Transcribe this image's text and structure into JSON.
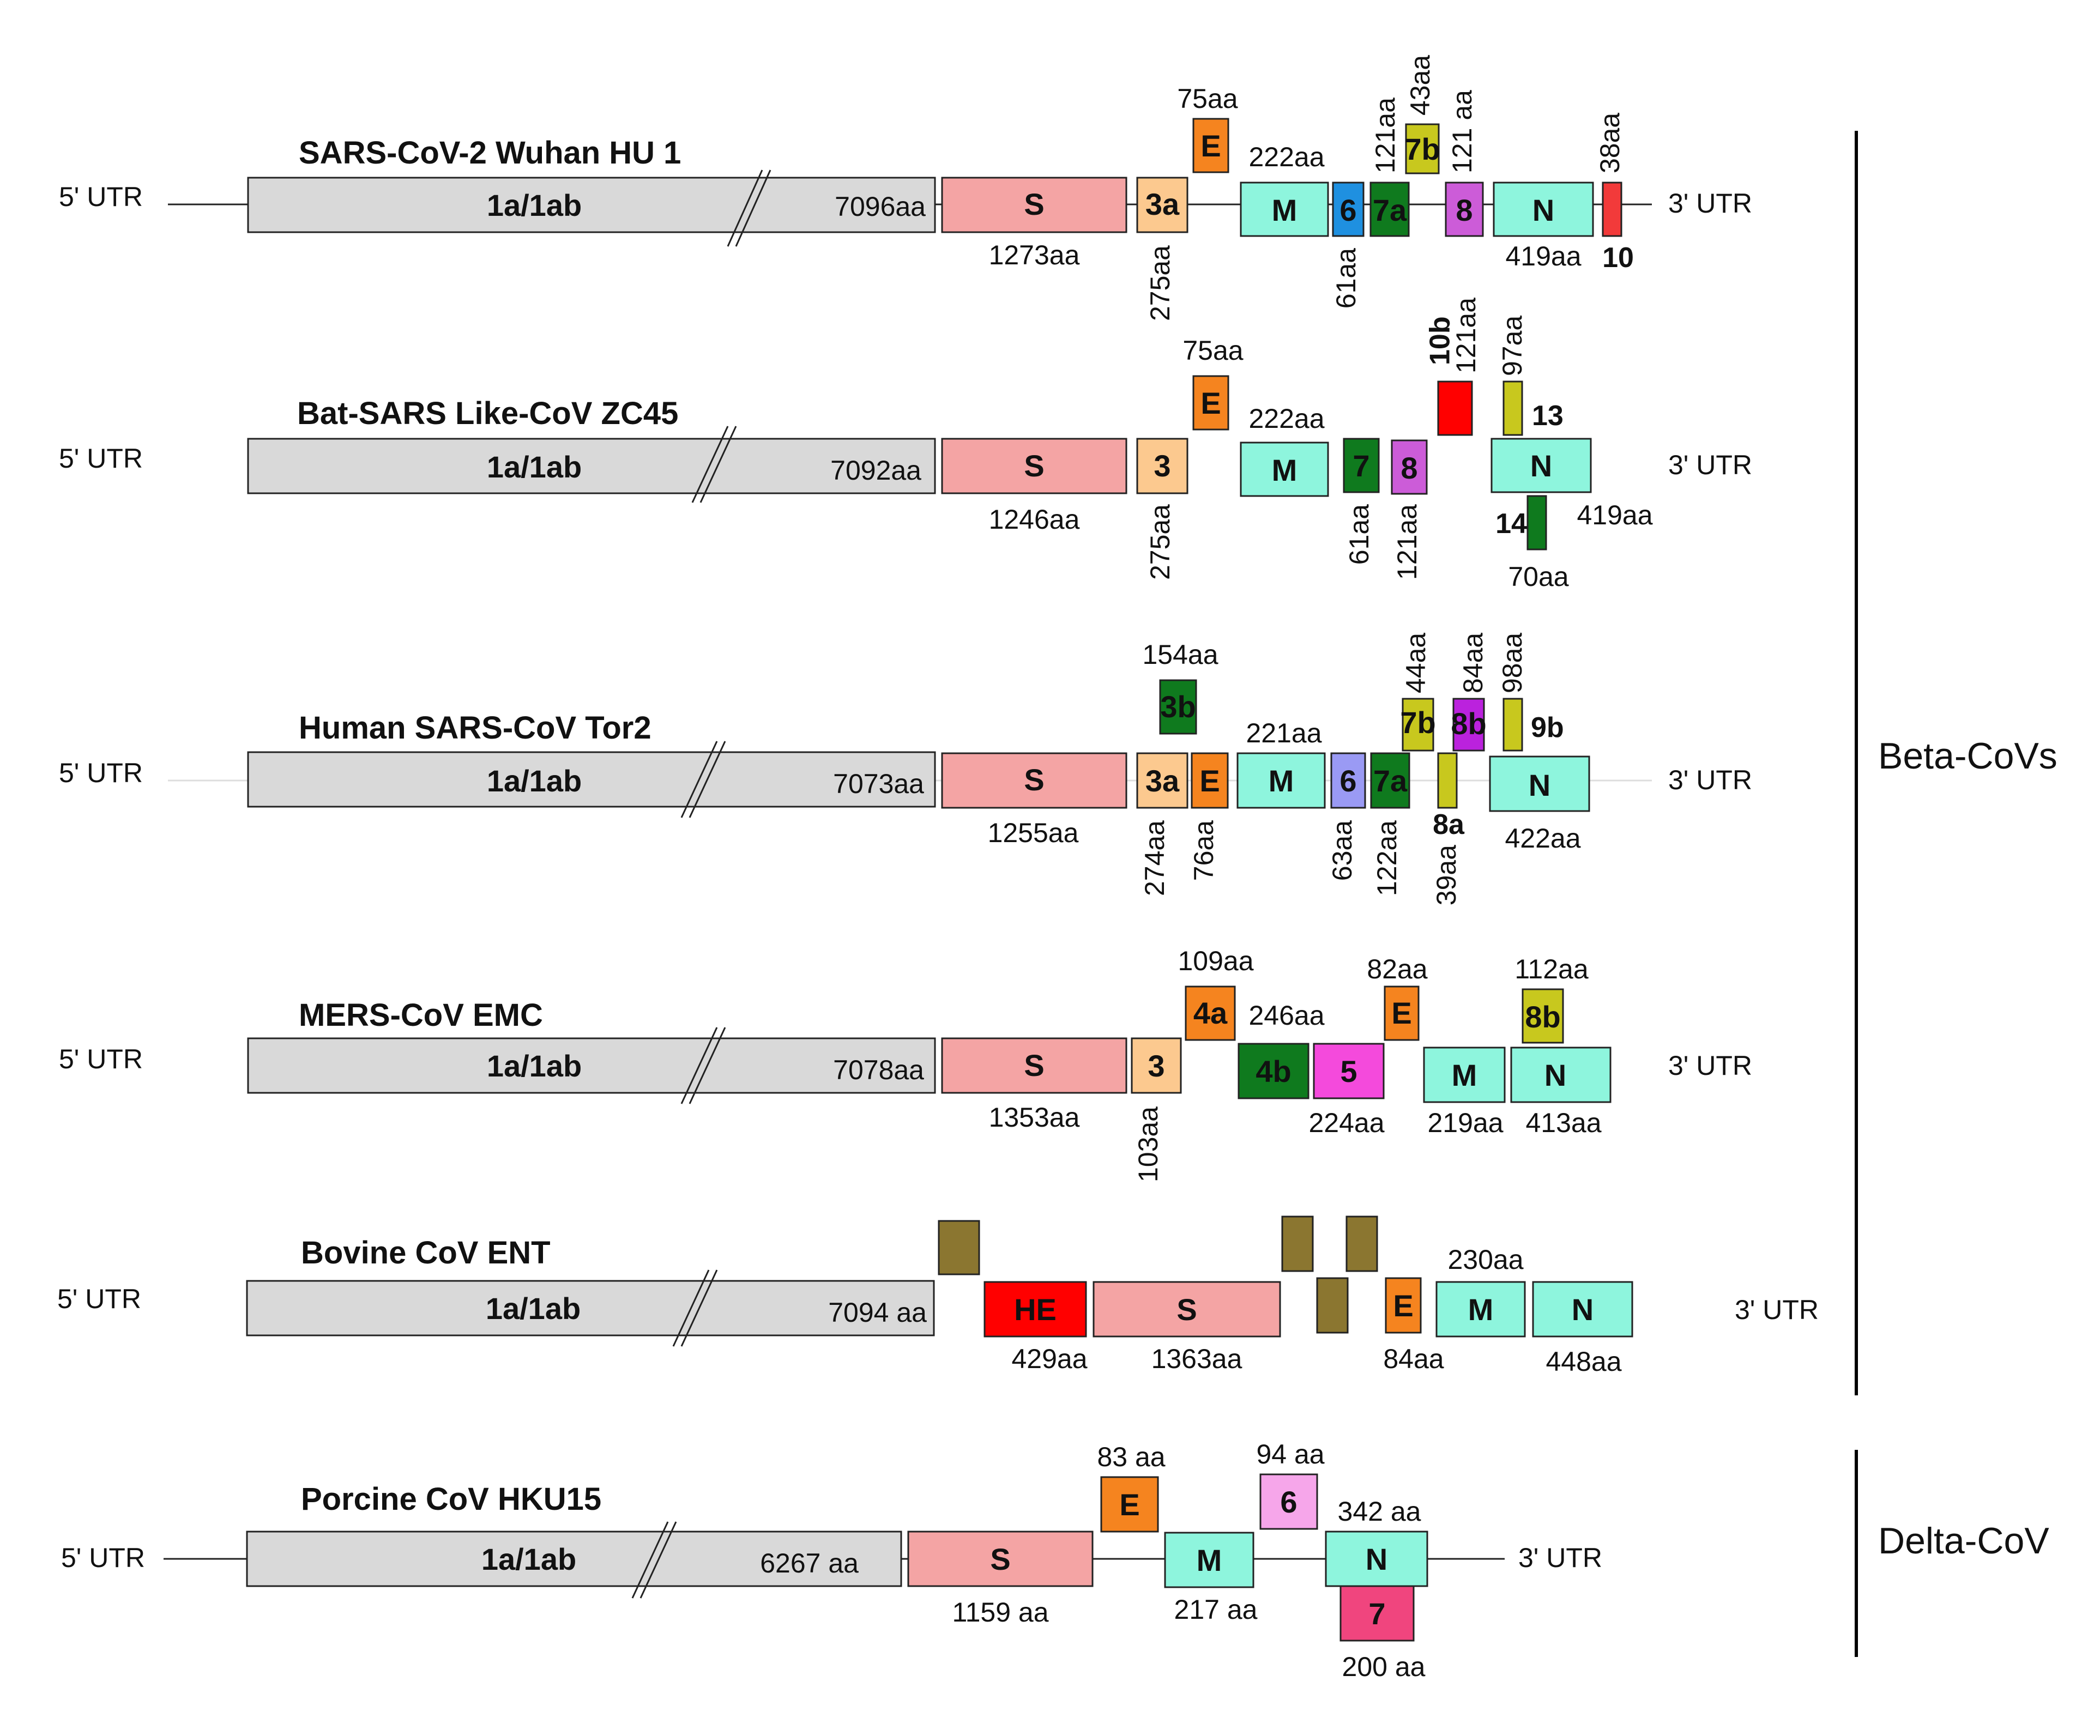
{
  "colors": {
    "gray": "#d9d9d9",
    "S": "#f4a4a4",
    "orf3": "#fcc98f",
    "E": "#f5841f",
    "M": "#8ef5dd",
    "N": "#8ef5dd",
    "blue6": "#1f90e0",
    "green": "#0f7a1e",
    "olive": "#c8c81e",
    "purple": "#cc5cd8",
    "red": "#f23a3a",
    "lavender": "#9a9af4",
    "violet": "#bb22dd",
    "magenta": "#f44adc",
    "brown": "#8b7630",
    "brightred": "#ff0000",
    "pink": "#f6a6ea",
    "hotpink": "#f0457e"
  },
  "common": {
    "utr5": "5' UTR",
    "utr3": "3' UTR",
    "orf1": "1a/1ab"
  },
  "groups": {
    "beta": "Beta-CoVs",
    "delta": "Delta-CoV"
  },
  "genomes": {
    "sars2": {
      "title": "SARS-CoV-2 Wuhan HU 1",
      "orf1_len": "7096aa",
      "S": "S",
      "S_len": "1273aa",
      "g3a": "3a",
      "g3a_len": "275aa",
      "E": "E",
      "E_len": "75aa",
      "M": "M",
      "M_len": "222aa",
      "g6": "6",
      "g6_len": "61aa",
      "g7a": "7a",
      "g7a_len": "121aa",
      "g7b": "7b",
      "g7b_len": "43aa",
      "g8": "8",
      "g8_len": "121 aa",
      "N": "N",
      "N_len": "419aa",
      "g10": "10",
      "g10_len": "38aa"
    },
    "zc45": {
      "title": "Bat-SARS Like-CoV ZC45",
      "orf1_len": "7092aa",
      "S": "S",
      "S_len": "1246aa",
      "g3": "3",
      "g3_len": "275aa",
      "E": "E",
      "E_len": "75aa",
      "M": "M",
      "M_len": "222aa",
      "g7": "7",
      "g7_len": "61aa",
      "g8": "8",
      "g8_len": "121aa",
      "g10b": "10b",
      "g10b_len": "121aa",
      "g13": "13",
      "g13_len": "97aa",
      "N": "N",
      "N_len": "419aa",
      "g14": "14",
      "g14_len": "70aa"
    },
    "tor2": {
      "title": "Human SARS-CoV Tor2",
      "orf1_len": "7073aa",
      "S": "S",
      "S_len": "1255aa",
      "g3a": "3a",
      "g3a_len": "274aa",
      "g3b": "3b",
      "g3b_len": "154aa",
      "E": "E",
      "E_len": "76aa",
      "M": "M",
      "M_len": "221aa",
      "g6": "6",
      "g6_len": "63aa",
      "g7a": "7a",
      "g7a_len": "122aa",
      "g7b": "7b",
      "g7b_len": "44aa",
      "g8a": "8a",
      "g8a_len": "39aa",
      "g8b": "8b",
      "g8b_len": "84aa",
      "g9b": "9b",
      "g9b_len": "98aa",
      "N": "N",
      "N_len": "422aa"
    },
    "mers": {
      "title": "MERS-CoV EMC",
      "orf1_len": "7078aa",
      "S": "S",
      "S_len": "1353aa",
      "g3": "3",
      "g3_len": "103aa",
      "g4a": "4a",
      "g4a_len": "109aa",
      "g4b": "4b",
      "g4b_len": "246aa",
      "g5": "5",
      "g5_len": "224aa",
      "E": "E",
      "E_len": "82aa",
      "M": "M",
      "M_len": "219aa",
      "g8b": "8b",
      "g8b_len": "112aa",
      "N": "N",
      "N_len": "413aa"
    },
    "bovine": {
      "title": "Bovine CoV ENT",
      "orf1_len": "7094 aa",
      "HE": "HE",
      "HE_len": "429aa",
      "S": "S",
      "S_len": "1363aa",
      "E": "E",
      "E_len": "84aa",
      "M": "M",
      "M_len": "230aa",
      "N": "N",
      "N_len": "448aa"
    },
    "hku15": {
      "title": "Porcine CoV HKU15",
      "orf1_len": "6267 aa",
      "S": "S",
      "S_len": "1159 aa",
      "E": "E",
      "E_len": "83 aa",
      "M": "M",
      "M_len": "217 aa",
      "g6": "6",
      "g6_len": "94 aa",
      "N": "N",
      "N_len": "342 aa",
      "g7": "7",
      "g7_len": "200 aa"
    }
  }
}
